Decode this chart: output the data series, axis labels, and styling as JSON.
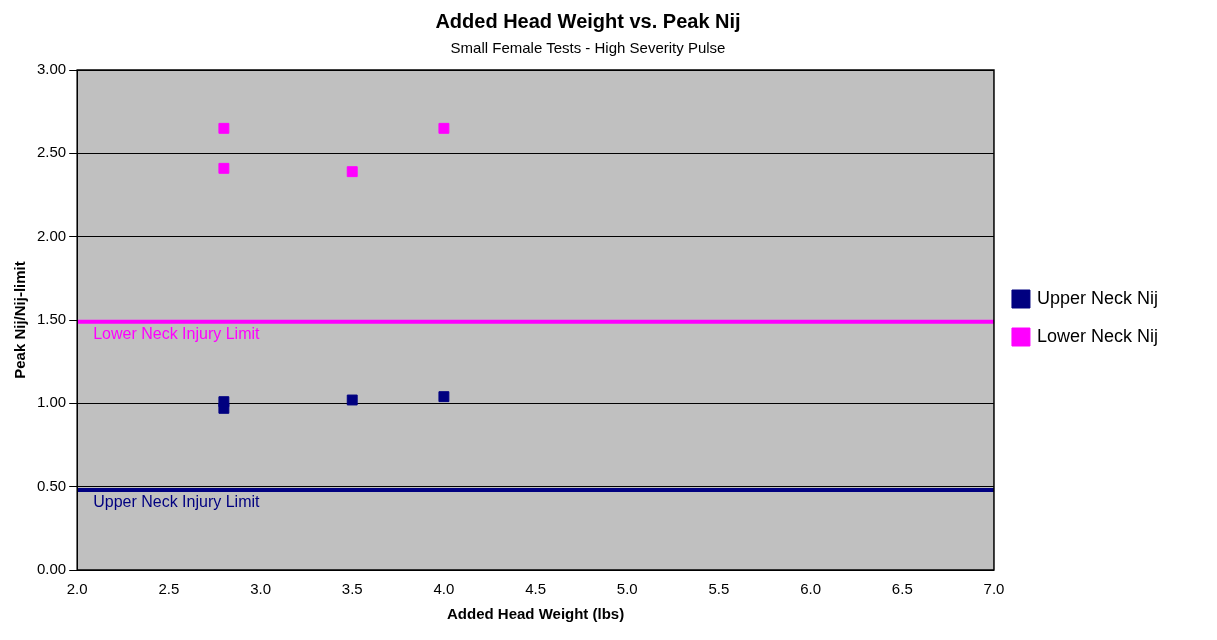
{
  "chart_data": {
    "type": "scatter",
    "title": "Added Head Weight vs. Peak Nij",
    "subtitle": "Small Female Tests - High Severity Pulse",
    "xlabel": "Added Head Weight (lbs)",
    "ylabel": "Peak Nij/Nij-limit",
    "series": [
      {
        "name": "Upper Neck Nij",
        "color": "#000080",
        "x": [
          2.8,
          2.8,
          3.5,
          4.0
        ],
        "values": [
          1.01,
          0.97,
          1.02,
          1.04
        ]
      },
      {
        "name": "Lower Neck Nij",
        "color": "#ff00ff",
        "x": [
          2.8,
          2.8,
          3.5,
          4.0
        ],
        "values": [
          2.65,
          2.41,
          2.39,
          2.65
        ]
      }
    ],
    "xlim": [
      2,
      7
    ],
    "xticks": [
      {
        "value": 2,
        "label": "2.0"
      },
      {
        "value": 2.5,
        "label": "2.5"
      },
      {
        "value": 3,
        "label": "3.0"
      },
      {
        "value": 3.5,
        "label": "3.5"
      },
      {
        "value": 4,
        "label": "4.0"
      },
      {
        "value": 4.5,
        "label": "4.5"
      },
      {
        "value": 5,
        "label": "5.0"
      },
      {
        "value": 5.5,
        "label": "5.5"
      },
      {
        "value": 6,
        "label": "6.0"
      },
      {
        "value": 6.5,
        "label": "6.5"
      },
      {
        "value": 7,
        "label": "7.0"
      }
    ],
    "ylim": [
      0,
      3
    ],
    "yticks": [
      {
        "value": 0,
        "label": "0.00"
      },
      {
        "value": 0.5,
        "label": "0.50"
      },
      {
        "value": 1,
        "label": "1.00"
      },
      {
        "value": 1.5,
        "label": "1.50"
      },
      {
        "value": 2,
        "label": "2.00"
      },
      {
        "value": 2.5,
        "label": "2.50"
      },
      {
        "value": 3,
        "label": "3.00"
      }
    ],
    "ref_lines": [
      {
        "axis": "y",
        "value": 1.49,
        "label": "Lower Neck Injury Limit",
        "color": "#ff00ff"
      },
      {
        "axis": "y",
        "value": 0.48,
        "label": "Upper Neck Injury Limit",
        "color": "#000080"
      }
    ],
    "grid": "y",
    "legend": "right",
    "marker": "square"
  }
}
